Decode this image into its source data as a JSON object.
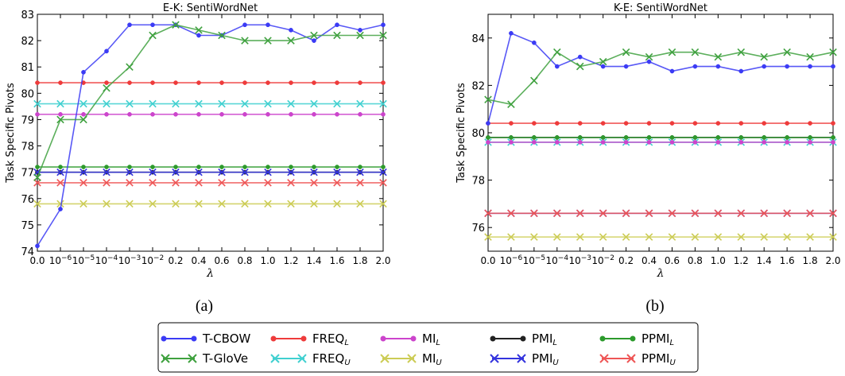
{
  "figure": {
    "caption_a": "(a)",
    "caption_b": "(b)"
  },
  "styles": {
    "T-CBOW": {
      "color": "#3b3bf5",
      "marker": "dot"
    },
    "T-GloVe": {
      "color": "#3fa13f",
      "marker": "x"
    },
    "FREQ_L": {
      "color": "#ee3b3b",
      "marker": "dot"
    },
    "FREQ_U": {
      "color": "#40d0d0",
      "marker": "x"
    },
    "MI_L": {
      "color": "#cc44cc",
      "marker": "dot"
    },
    "MI_U": {
      "color": "#cccc55",
      "marker": "x"
    },
    "PMI_L": {
      "color": "#222222",
      "marker": "dot"
    },
    "PMI_U": {
      "color": "#3333dd",
      "marker": "x"
    },
    "PPMI_L": {
      "color": "#2c9a2c",
      "marker": "dot"
    },
    "PPMI_U": {
      "color": "#ee5555",
      "marker": "x"
    }
  },
  "legend": [
    {
      "key": "T-CBOW",
      "label": "T-CBOW",
      "sub": ""
    },
    {
      "key": "T-GloVe",
      "label": "T-GloVe",
      "sub": ""
    },
    {
      "key": "FREQ_L",
      "label": "FREQ",
      "sub": "L"
    },
    {
      "key": "FREQ_U",
      "label": "FREQ",
      "sub": "U"
    },
    {
      "key": "MI_L",
      "label": "MI",
      "sub": "L"
    },
    {
      "key": "MI_U",
      "label": "MI",
      "sub": "U"
    },
    {
      "key": "PMI_L",
      "label": "PMI",
      "sub": "L"
    },
    {
      "key": "PMI_U",
      "label": "PMI",
      "sub": "U"
    },
    {
      "key": "PPMI_L",
      "label": "PPMI",
      "sub": "L"
    },
    {
      "key": "PPMI_U",
      "label": "PPMI",
      "sub": "U"
    }
  ],
  "chart_data": [
    {
      "type": "line",
      "title": "E-K: SentiWordNet",
      "xlabel": "λ",
      "ylabel": "Task Specific Pivots",
      "ylim": [
        74,
        83
      ],
      "yticks": [
        74,
        75,
        76,
        77,
        78,
        79,
        80,
        81,
        82,
        83
      ],
      "grid": false,
      "x": [
        "0.0",
        "10^-6",
        "10^-5",
        "10^-4",
        "10^-3",
        "10^-2",
        "0.2",
        "0.4",
        "0.6",
        "0.8",
        "1.0",
        "1.2",
        "1.4",
        "1.6",
        "1.8",
        "2.0"
      ],
      "series": [
        {
          "name": "T-CBOW",
          "key": "T-CBOW",
          "values": [
            74.2,
            75.6,
            80.8,
            81.6,
            82.6,
            82.6,
            82.6,
            82.2,
            82.2,
            82.6,
            82.6,
            82.4,
            82.0,
            82.6,
            82.4,
            82.6
          ]
        },
        {
          "name": "T-GloVe",
          "key": "T-GloVe",
          "values": [
            76.8,
            79.0,
            79.0,
            80.2,
            81.0,
            82.2,
            82.6,
            82.4,
            82.2,
            82.0,
            82.0,
            82.0,
            82.2,
            82.2,
            82.2,
            82.2
          ]
        },
        {
          "name": "FREQ_L",
          "key": "FREQ_L",
          "values": [
            80.4,
            80.4,
            80.4,
            80.4,
            80.4,
            80.4,
            80.4,
            80.4,
            80.4,
            80.4,
            80.4,
            80.4,
            80.4,
            80.4,
            80.4,
            80.4
          ]
        },
        {
          "name": "FREQ_U",
          "key": "FREQ_U",
          "values": [
            79.6,
            79.6,
            79.6,
            79.6,
            79.6,
            79.6,
            79.6,
            79.6,
            79.6,
            79.6,
            79.6,
            79.6,
            79.6,
            79.6,
            79.6,
            79.6
          ]
        },
        {
          "name": "MI_L",
          "key": "MI_L",
          "values": [
            79.2,
            79.2,
            79.2,
            79.2,
            79.2,
            79.2,
            79.2,
            79.2,
            79.2,
            79.2,
            79.2,
            79.2,
            79.2,
            79.2,
            79.2,
            79.2
          ]
        },
        {
          "name": "MI_U",
          "key": "MI_U",
          "values": [
            75.8,
            75.8,
            75.8,
            75.8,
            75.8,
            75.8,
            75.8,
            75.8,
            75.8,
            75.8,
            75.8,
            75.8,
            75.8,
            75.8,
            75.8,
            75.8
          ]
        },
        {
          "name": "PMI_L",
          "key": "PMI_L",
          "values": [
            77.0,
            77.0,
            77.0,
            77.0,
            77.0,
            77.0,
            77.0,
            77.0,
            77.0,
            77.0,
            77.0,
            77.0,
            77.0,
            77.0,
            77.0,
            77.0
          ]
        },
        {
          "name": "PMI_U",
          "key": "PMI_U",
          "values": [
            77.0,
            77.0,
            77.0,
            77.0,
            77.0,
            77.0,
            77.0,
            77.0,
            77.0,
            77.0,
            77.0,
            77.0,
            77.0,
            77.0,
            77.0,
            77.0
          ]
        },
        {
          "name": "PPMI_L",
          "key": "PPMI_L",
          "values": [
            77.2,
            77.2,
            77.2,
            77.2,
            77.2,
            77.2,
            77.2,
            77.2,
            77.2,
            77.2,
            77.2,
            77.2,
            77.2,
            77.2,
            77.2,
            77.2
          ]
        },
        {
          "name": "PPMI_U",
          "key": "PPMI_U",
          "values": [
            76.6,
            76.6,
            76.6,
            76.6,
            76.6,
            76.6,
            76.6,
            76.6,
            76.6,
            76.6,
            76.6,
            76.6,
            76.6,
            76.6,
            76.6,
            76.6
          ]
        }
      ]
    },
    {
      "type": "line",
      "title": "K-E: SentiWordNet",
      "xlabel": "λ",
      "ylabel": "Task Specific Pivots",
      "ylim": [
        75,
        85
      ],
      "yticks": [
        76,
        78,
        80,
        82,
        84
      ],
      "grid": false,
      "x": [
        "0.0",
        "10^-6",
        "10^-5",
        "10^-4",
        "10^-3",
        "10^-2",
        "0.2",
        "0.4",
        "0.6",
        "0.8",
        "1.0",
        "1.2",
        "1.4",
        "1.6",
        "1.8",
        "2.0"
      ],
      "series": [
        {
          "name": "T-CBOW",
          "key": "T-CBOW",
          "values": [
            80.4,
            84.2,
            83.8,
            82.8,
            83.2,
            82.8,
            82.8,
            83.0,
            82.6,
            82.8,
            82.8,
            82.6,
            82.8,
            82.8,
            82.8,
            82.8
          ]
        },
        {
          "name": "T-GloVe",
          "key": "T-GloVe",
          "values": [
            81.4,
            81.2,
            82.2,
            83.4,
            82.8,
            83.0,
            83.4,
            83.2,
            83.4,
            83.4,
            83.2,
            83.4,
            83.2,
            83.4,
            83.2,
            83.4
          ]
        },
        {
          "name": "FREQ_L",
          "key": "FREQ_L",
          "values": [
            80.4,
            80.4,
            80.4,
            80.4,
            80.4,
            80.4,
            80.4,
            80.4,
            80.4,
            80.4,
            80.4,
            80.4,
            80.4,
            80.4,
            80.4,
            80.4
          ]
        },
        {
          "name": "FREQ_U",
          "key": "FREQ_U",
          "values": [
            79.6,
            79.6,
            79.6,
            79.6,
            79.6,
            79.6,
            79.6,
            79.6,
            79.6,
            79.6,
            79.6,
            79.6,
            79.6,
            79.6,
            79.6,
            79.6
          ]
        },
        {
          "name": "MI_L",
          "key": "MI_L",
          "values": [
            79.6,
            79.6,
            79.6,
            79.6,
            79.6,
            79.6,
            79.6,
            79.6,
            79.6,
            79.6,
            79.6,
            79.6,
            79.6,
            79.6,
            79.6,
            79.6
          ]
        },
        {
          "name": "MI_U",
          "key": "MI_U",
          "values": [
            75.6,
            75.6,
            75.6,
            75.6,
            75.6,
            75.6,
            75.6,
            75.6,
            75.6,
            75.6,
            75.6,
            75.6,
            75.6,
            75.6,
            75.6,
            75.6
          ]
        },
        {
          "name": "PMI_L",
          "key": "PMI_L",
          "values": [
            79.8,
            79.8,
            79.8,
            79.8,
            79.8,
            79.8,
            79.8,
            79.8,
            79.8,
            79.8,
            79.8,
            79.8,
            79.8,
            79.8,
            79.8,
            79.8
          ]
        },
        {
          "name": "PMI_U",
          "key": "PMI_U",
          "values": [
            76.6,
            76.6,
            76.6,
            76.6,
            76.6,
            76.6,
            76.6,
            76.6,
            76.6,
            76.6,
            76.6,
            76.6,
            76.6,
            76.6,
            76.6,
            76.6
          ]
        },
        {
          "name": "PPMI_L",
          "key": "PPMI_L",
          "values": [
            79.8,
            79.8,
            79.8,
            79.8,
            79.8,
            79.8,
            79.8,
            79.8,
            79.8,
            79.8,
            79.8,
            79.8,
            79.8,
            79.8,
            79.8,
            79.8
          ]
        },
        {
          "name": "PPMI_U",
          "key": "PPMI_U",
          "values": [
            76.6,
            76.6,
            76.6,
            76.6,
            76.6,
            76.6,
            76.6,
            76.6,
            76.6,
            76.6,
            76.6,
            76.6,
            76.6,
            76.6,
            76.6,
            76.6
          ]
        }
      ]
    }
  ]
}
